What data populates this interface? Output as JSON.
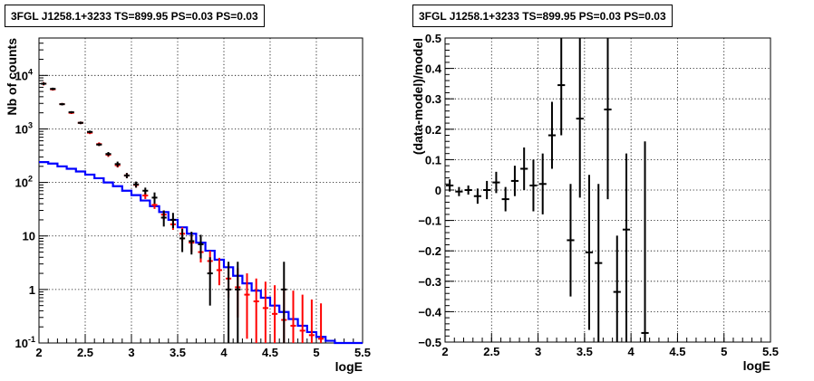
{
  "chart_data": [
    {
      "type": "line",
      "title": "3FGL J1258.1+3233 TS=899.95 PS=0.03 PS=0.03",
      "xlabel": "logE",
      "ylabel": "Nb of counts",
      "xlim": [
        2,
        5.5
      ],
      "ylim": [
        0.1,
        50000
      ],
      "y_scale": "log",
      "grid": true,
      "x_ticks": [
        "2",
        "2.5",
        "3",
        "3.5",
        "4",
        "4.5",
        "5",
        "5.5"
      ],
      "y_ticks": [
        {
          "value": 0.1,
          "label": "10",
          "exp": "-1"
        },
        {
          "value": 1,
          "label": "1",
          "exp": ""
        },
        {
          "value": 10,
          "label": "10",
          "exp": ""
        },
        {
          "value": 100,
          "label": "10",
          "exp": "2"
        },
        {
          "value": 1000,
          "label": "10",
          "exp": "3"
        },
        {
          "value": 10000,
          "label": "10",
          "exp": "4"
        }
      ],
      "bin_width": 0.1,
      "series": [
        {
          "color": "#ff0000",
          "style": "points",
          "x": [
            2.05,
            2.15,
            2.25,
            2.35,
            2.45,
            2.55,
            2.65,
            2.75,
            2.85,
            2.95,
            3.05,
            3.15,
            3.25,
            3.35,
            3.45,
            3.55,
            3.65,
            3.75,
            3.85,
            3.95,
            4.05,
            4.15,
            4.25,
            4.35,
            4.45,
            4.55,
            4.65,
            4.75,
            4.85,
            4.95,
            5.05
          ],
          "y": [
            7000,
            5500,
            2900,
            2000,
            1300,
            850,
            520,
            330,
            210,
            135,
            90,
            57,
            38,
            25,
            16.5,
            11,
            7.5,
            5,
            3.4,
            2.3,
            1.6,
            1.1,
            0.8,
            0.6,
            0.45,
            0.35,
            0.27,
            0.21,
            0.17,
            0.14,
            0.12
          ],
          "y_low": [
            6500,
            5200,
            2750,
            1900,
            1230,
            800,
            480,
            300,
            190,
            120,
            80,
            49,
            32,
            20,
            13,
            8,
            5,
            3.2,
            2,
            1.2,
            0.7,
            0.3,
            0.12,
            0.1,
            0.1,
            0.1,
            0.1,
            0.1,
            0.1,
            0.1,
            0.1
          ],
          "y_high": [
            7500,
            5800,
            3050,
            2100,
            1370,
            900,
            560,
            360,
            230,
            150,
            100,
            65,
            44,
            30,
            21,
            14.5,
            10.5,
            7.5,
            5.3,
            3.9,
            3,
            2.5,
            2,
            1.6,
            1.4,
            1.2,
            1.05,
            0.95,
            0.8,
            0.65,
            0.55
          ]
        },
        {
          "color": "#000000",
          "style": "points",
          "x": [
            2.05,
            2.15,
            2.25,
            2.35,
            2.45,
            2.55,
            2.65,
            2.75,
            2.85,
            2.95,
            3.05,
            3.15,
            3.25,
            3.35,
            3.45,
            3.55,
            3.65,
            3.75,
            3.85,
            4.05,
            4.15,
            4.65
          ],
          "y": [
            7000,
            5600,
            2900,
            2050,
            1300,
            880,
            510,
            340,
            220,
            135,
            92,
            70,
            52,
            22,
            20,
            9,
            8,
            7,
            2,
            1,
            1,
            1
          ],
          "y_low": [
            6600,
            5300,
            2750,
            1950,
            1230,
            830,
            480,
            310,
            195,
            120,
            80,
            60,
            40,
            15,
            14,
            5,
            4.5,
            3.8,
            0.5,
            0.1,
            0.1,
            0.1
          ],
          "y_high": [
            7400,
            5900,
            3050,
            2150,
            1370,
            930,
            540,
            370,
            245,
            150,
            104,
            80,
            65,
            30,
            27,
            13.5,
            12,
            10.5,
            4,
            3.3,
            3.3,
            3.3
          ]
        },
        {
          "color": "#0000ff",
          "style": "step",
          "x": [
            2.05,
            2.15,
            2.25,
            2.35,
            2.45,
            2.55,
            2.65,
            2.75,
            2.85,
            2.95,
            3.05,
            3.15,
            3.25,
            3.35,
            3.45,
            3.55,
            3.65,
            3.75,
            3.85,
            3.95,
            4.05,
            4.15,
            4.25,
            4.35,
            4.45,
            4.55,
            4.65,
            4.75,
            4.85,
            4.95,
            5.05,
            5.15,
            5.25,
            5.35,
            5.45
          ],
          "y": [
            240,
            225,
            200,
            180,
            160,
            140,
            120,
            100,
            85,
            70,
            58,
            46,
            36,
            28,
            20,
            14.5,
            11,
            7.5,
            5.3,
            3.6,
            2.6,
            1.8,
            1.3,
            0.95,
            0.7,
            0.5,
            0.38,
            0.28,
            0.21,
            0.16,
            0.13,
            0.11,
            0.1,
            0.1,
            0.1
          ]
        }
      ]
    },
    {
      "type": "scatter",
      "title": "3FGL J1258.1+3233 TS=899.95 PS=0.03 PS=0.03",
      "xlabel": "logE",
      "ylabel": "(data-model)/model",
      "xlim": [
        2,
        5.5
      ],
      "ylim": [
        -0.5,
        0.5
      ],
      "grid": true,
      "x_ticks": [
        "2",
        "2.5",
        "3",
        "3.5",
        "4",
        "4.5",
        "5",
        "5.5"
      ],
      "y_ticks": [
        "−0.5",
        "−0.4",
        "−0.3",
        "−0.2",
        "−0.1",
        "0",
        "0.1",
        "0.2",
        "0.3",
        "0.4",
        "0.5"
      ],
      "y_tick_values": [
        -0.5,
        -0.4,
        -0.3,
        -0.2,
        -0.1,
        0,
        0.1,
        0.2,
        0.3,
        0.4,
        0.5
      ],
      "bin_width": 0.1,
      "series": [
        {
          "color": "#000000",
          "x": [
            2.05,
            2.15,
            2.25,
            2.35,
            2.45,
            2.55,
            2.65,
            2.75,
            2.85,
            2.95,
            3.05,
            3.15,
            3.25,
            3.35,
            3.45,
            3.55,
            3.65,
            3.75,
            3.85,
            3.95,
            4.15
          ],
          "y": [
            0.015,
            -0.005,
            0.0,
            -0.02,
            0.0,
            0.025,
            -0.03,
            0.03,
            0.07,
            0.015,
            0.02,
            0.18,
            0.345,
            -0.165,
            0.235,
            -0.205,
            -0.24,
            0.265,
            -0.335,
            -0.13,
            -0.47
          ],
          "y_low": [
            -0.005,
            -0.02,
            -0.015,
            -0.045,
            -0.03,
            -0.01,
            -0.07,
            -0.02,
            0.0,
            -0.07,
            -0.08,
            0.07,
            0.18,
            -0.35,
            -0.025,
            -0.46,
            -0.5,
            -0.03,
            -0.5,
            -0.5,
            -0.5
          ],
          "y_high": [
            0.035,
            0.01,
            0.015,
            0.005,
            0.03,
            0.06,
            0.01,
            0.08,
            0.14,
            0.1,
            0.12,
            0.29,
            0.5,
            0.02,
            0.5,
            0.05,
            0.02,
            0.5,
            -0.15,
            0.12,
            0.16
          ]
        }
      ]
    }
  ]
}
